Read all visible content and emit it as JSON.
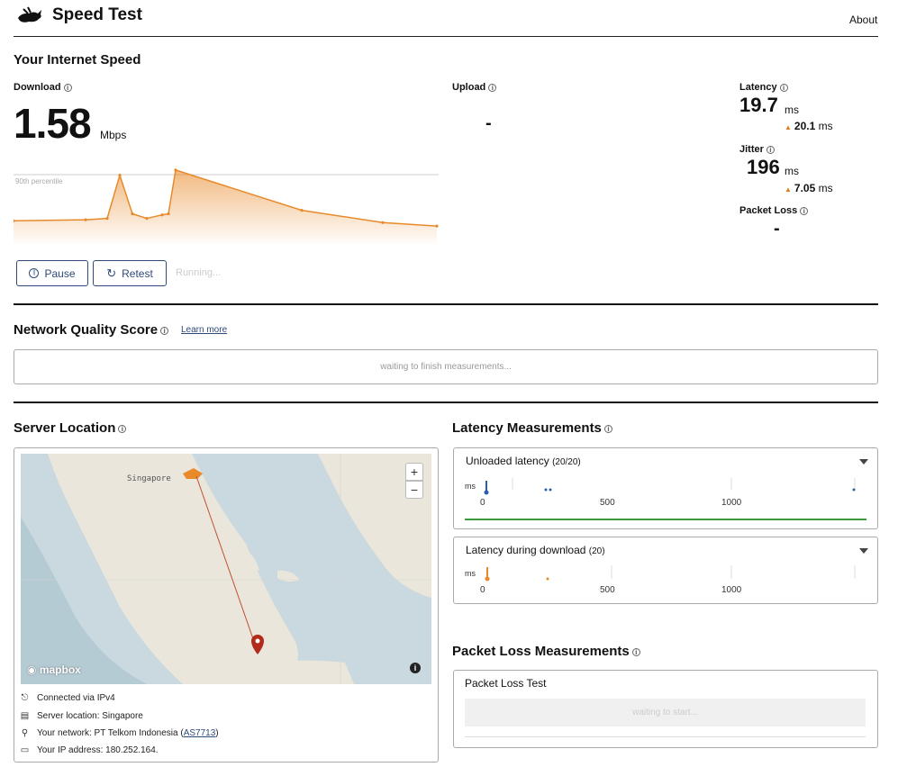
{
  "header": {
    "title": "Speed Test",
    "about": "About"
  },
  "speed": {
    "heading": "Your Internet Speed",
    "download": {
      "label": "Download",
      "value": "1.58",
      "unit": "Mbps",
      "percentile_label": "90th percentile"
    },
    "upload": {
      "label": "Upload",
      "value": "-"
    },
    "latency": {
      "label": "Latency",
      "value": "19.7",
      "unit": "ms",
      "loaded": "20.1",
      "loaded_unit": "ms"
    },
    "jitter": {
      "label": "Jitter",
      "value": "196",
      "unit": "ms",
      "loaded": "7.05",
      "loaded_unit": "ms"
    },
    "packet_loss": {
      "label": "Packet Loss",
      "value": "-"
    },
    "pause_label": "Pause",
    "retest_label": "Retest",
    "status": "Running..."
  },
  "chart_data": {
    "type": "area",
    "x": [
      0,
      1,
      2,
      3,
      4,
      5,
      6,
      7,
      8,
      9,
      10,
      11
    ],
    "values": [
      0.25,
      0.28,
      0.32,
      1.55,
      0.45,
      0.32,
      0.42,
      0.45,
      1.7,
      0.55,
      0.2,
      0.1
    ],
    "color": "#e88a2a"
  },
  "nqs": {
    "heading": "Network Quality Score",
    "learn_more": "Learn more",
    "status": "waiting to finish measurements..."
  },
  "server": {
    "heading": "Server Location",
    "map_city": "Singapore",
    "mapbox": "mapbox",
    "connected": "Connected via IPv4",
    "location": "Server location: Singapore",
    "network_prefix": "Your network: PT Telkom Indonesia (",
    "network_as": "AS7713",
    "network_suffix": ")",
    "ip": "Your IP address: 180.252.164."
  },
  "latency": {
    "heading": "Latency Measurements",
    "unloaded_title": "Unloaded latency",
    "unloaded_count": "(20/20)",
    "loaded_title": "Latency during download",
    "loaded_count": "(20)",
    "axis_unit": "ms",
    "ticks": [
      "0",
      "500",
      "1000"
    ]
  },
  "packet_loss": {
    "heading": "Packet Loss Measurements",
    "test_title": "Packet Loss Test",
    "status": "waiting to start..."
  },
  "colors": {
    "accent": "#2e4a7a",
    "orange": "#e88a2a",
    "blue": "#2a5db0",
    "green": "#3c9a3c"
  }
}
